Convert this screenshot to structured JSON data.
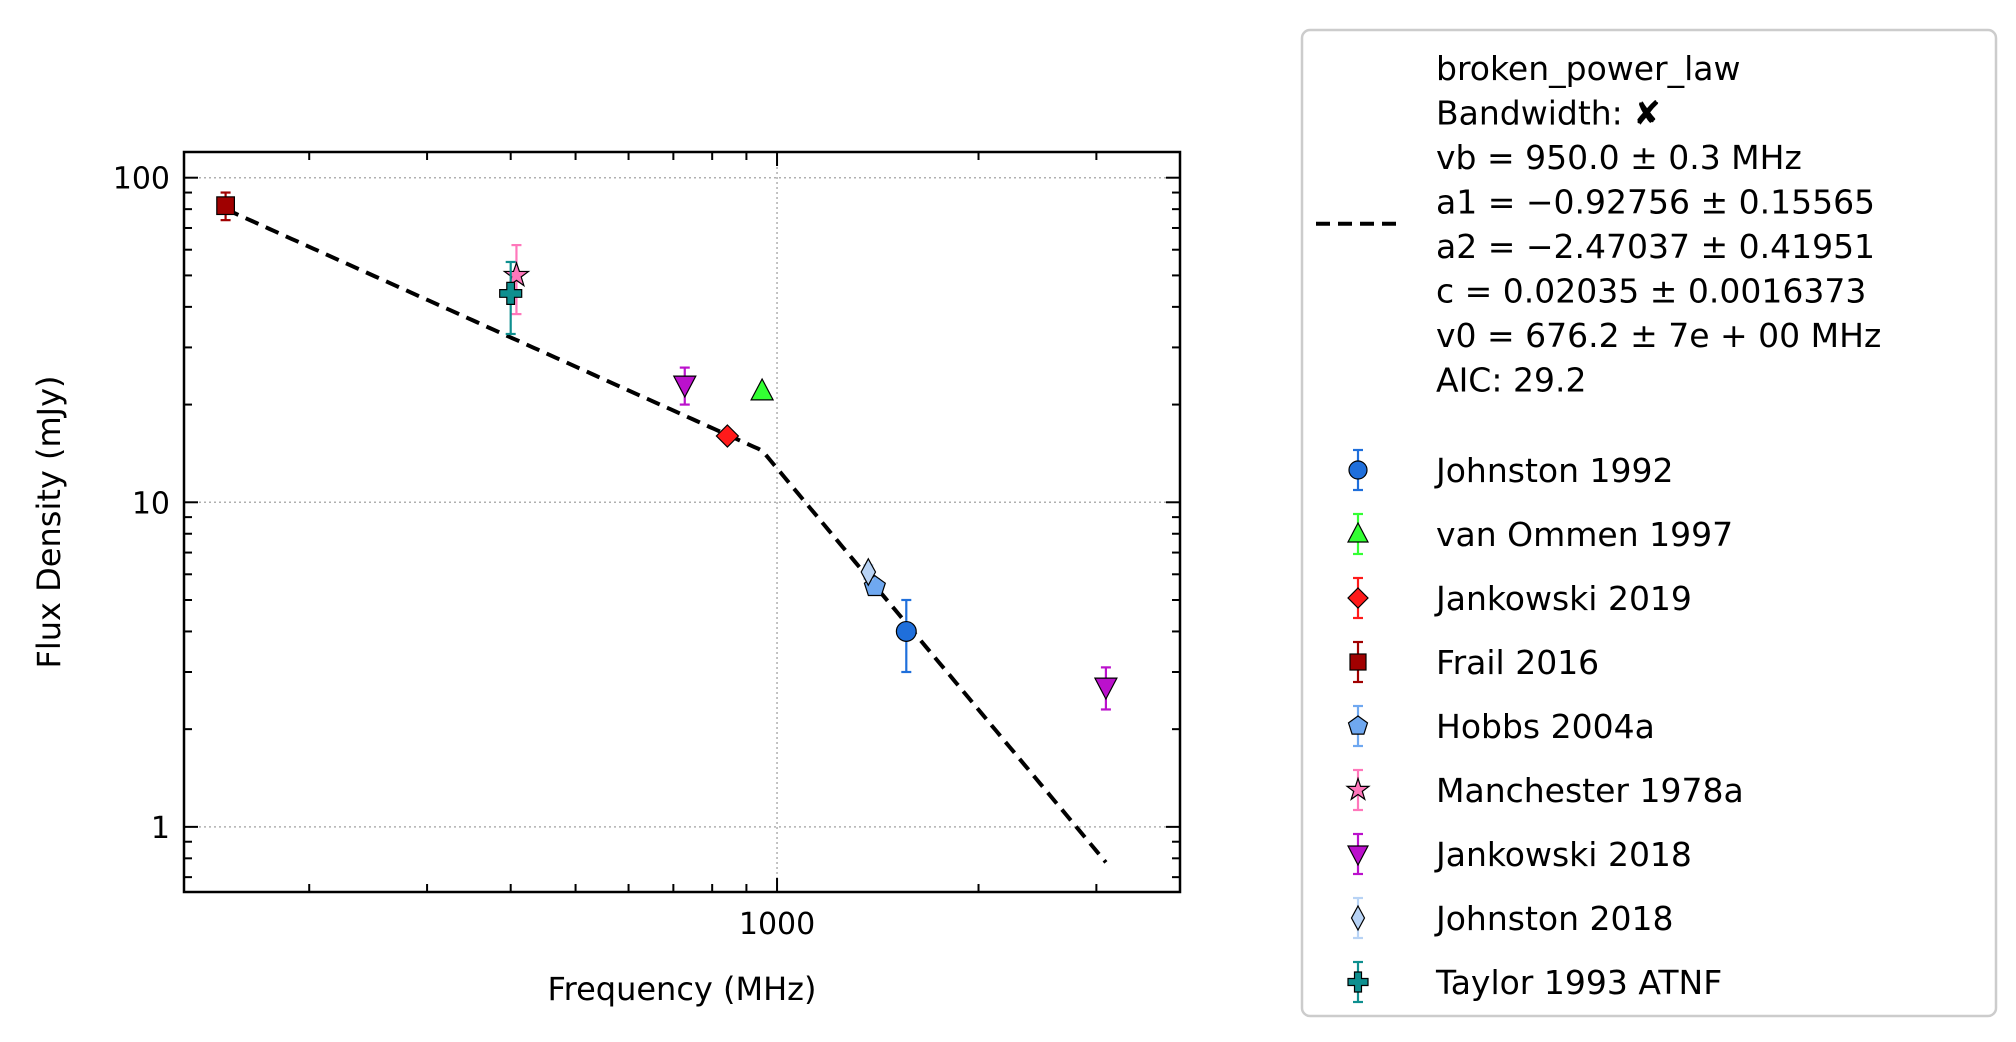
{
  "chart_data": {
    "type": "scatter",
    "xlabel": "Frequency (MHz)",
    "ylabel": "Flux Density (mJy)",
    "xscale": "log",
    "yscale": "log",
    "xlim": [
      130,
      4000
    ],
    "ylim": [
      0.63,
      120
    ],
    "grid": true,
    "legend_placement": "outside-right",
    "x_ticks": [
      {
        "value": 1000,
        "label": "1000"
      }
    ],
    "y_ticks": [
      {
        "value": 1,
        "label": "1"
      },
      {
        "value": 10,
        "label": "10"
      },
      {
        "value": 100,
        "label": "100"
      }
    ],
    "fit": {
      "name": "broken_power_law",
      "color": "#000000",
      "style": "dashed",
      "vb": 950.0,
      "a1": -0.92756,
      "a2": -2.47037,
      "c": 0.02035,
      "v0": 676.2,
      "x_range": [
        150,
        3100
      ],
      "info": [
        "broken_power_law",
        "Bandwidth: ✘",
        "vb = 950.0 ± 0.3 MHz",
        "a1 = −0.92756 ± 0.15565",
        "a2 = −2.47037 ± 0.41951",
        "c = 0.02035 ± 0.0016373",
        "v0 = 676.2 ± 7e + 00 MHz",
        "AIC: 29.2"
      ]
    },
    "series": [
      {
        "name": "Johnston 1992",
        "marker": "circle",
        "color": "#1f6fdb",
        "errcolor": "#1f6fdb",
        "points": [
          {
            "x": 1560,
            "y": 4.0,
            "err_lo": 1.0,
            "err_hi": 1.0
          }
        ]
      },
      {
        "name": "van Ommen 1997",
        "marker": "triangle-up",
        "color": "#33ff33",
        "errcolor": "#33ff33",
        "points": [
          {
            "x": 950,
            "y": 22.0,
            "err_lo": 0.5,
            "err_hi": 0.5
          }
        ]
      },
      {
        "name": "Jankowski 2019",
        "marker": "diamond",
        "color": "#ff1a1a",
        "errcolor": "#ff1a1a",
        "points": [
          {
            "x": 843,
            "y": 16.0,
            "err_lo": 0.5,
            "err_hi": 0.5
          }
        ]
      },
      {
        "name": "Frail 2016",
        "marker": "square",
        "color": "#a00000",
        "errcolor": "#a00000",
        "points": [
          {
            "x": 150,
            "y": 82.0,
            "err_lo": 8.0,
            "err_hi": 8.0
          }
        ]
      },
      {
        "name": "Hobbs 2004a",
        "marker": "pentagon",
        "color": "#6fa8f0",
        "errcolor": "#6fa8f0",
        "points": [
          {
            "x": 1400,
            "y": 5.5,
            "err_lo": 0.3,
            "err_hi": 0.3
          }
        ]
      },
      {
        "name": "Manchester 1978a",
        "marker": "star",
        "color": "#ff77bb",
        "errcolor": "#ff77bb",
        "points": [
          {
            "x": 408,
            "y": 50.0,
            "err_lo": 12.0,
            "err_hi": 12.0
          }
        ]
      },
      {
        "name": "Jankowski 2018",
        "marker": "triangle-down",
        "color": "#bb11cc",
        "errcolor": "#bb11cc",
        "points": [
          {
            "x": 728,
            "y": 23.0,
            "err_lo": 3.0,
            "err_hi": 3.0
          },
          {
            "x": 3100,
            "y": 2.7,
            "err_lo": 0.4,
            "err_hi": 0.4
          }
        ]
      },
      {
        "name": "Johnston 2018",
        "marker": "thin-diamond",
        "color": "#b8d3f5",
        "errcolor": "#b8d3f5",
        "points": [
          {
            "x": 1369,
            "y": 6.1,
            "err_lo": 0.3,
            "err_hi": 0.3
          }
        ]
      },
      {
        "name": "Taylor 1993 ATNF",
        "marker": "plus",
        "color": "#0e8f8f",
        "errcolor": "#0e8f8f",
        "points": [
          {
            "x": 400,
            "y": 44.0,
            "err_lo": 11.0,
            "err_hi": 11.0
          }
        ]
      }
    ]
  }
}
